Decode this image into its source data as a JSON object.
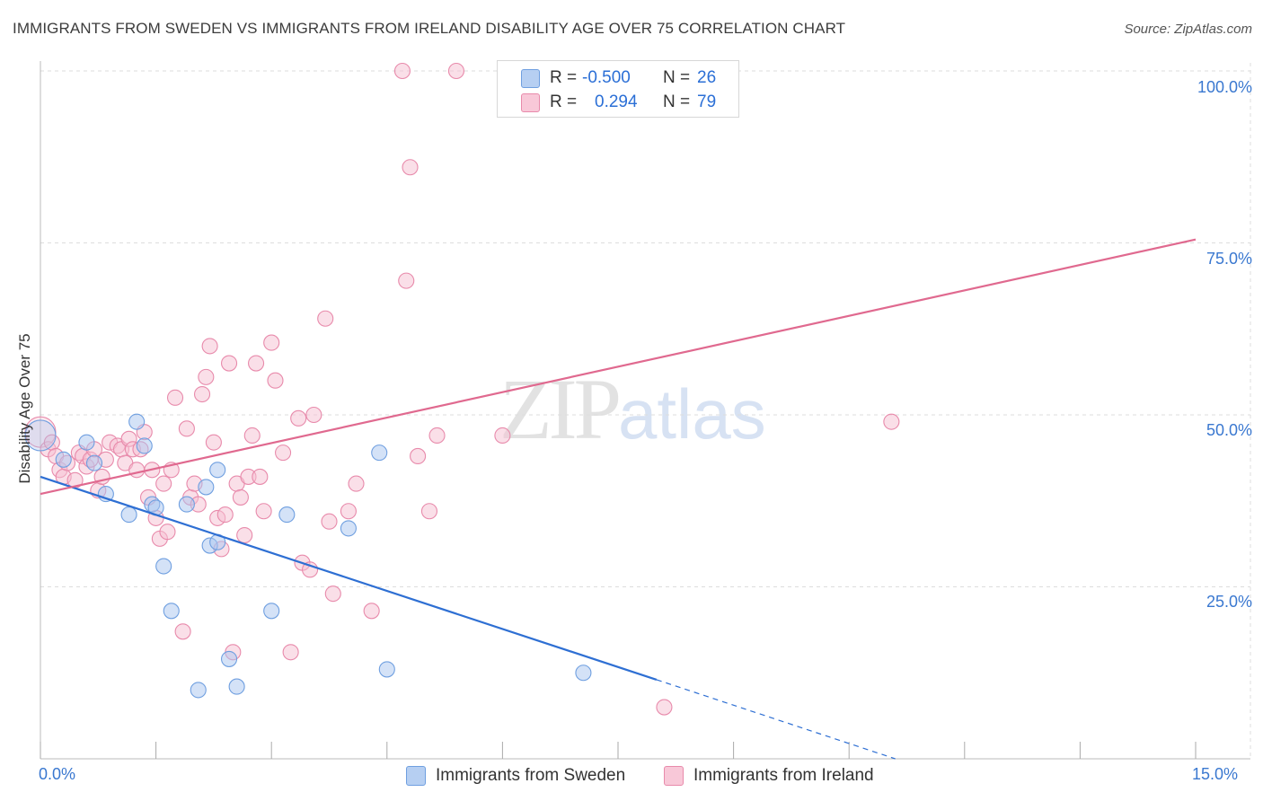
{
  "title": "IMMIGRANTS FROM SWEDEN VS IMMIGRANTS FROM IRELAND DISABILITY AGE OVER 75 CORRELATION CHART",
  "source": "Source: ZipAtlas.com",
  "watermark": {
    "zip": "ZIP",
    "atlas": "atlas"
  },
  "legend": {
    "sweden": {
      "r_label": "R =",
      "r_value": "-0.500",
      "n_label": "N =",
      "n_value": "26"
    },
    "ireland": {
      "r_label": "R =",
      "r_value": "0.294",
      "n_label": "N =",
      "n_value": "79"
    }
  },
  "colors": {
    "sweden_fill": "#a9c6ef",
    "sweden_stroke": "#6f9fe0",
    "sweden_line": "#2e6fd3",
    "ireland_fill": "#f6bfd1",
    "ireland_stroke": "#e88aab",
    "ireland_line": "#e0698f",
    "grid": "#dddddd",
    "axis_text": "#3a78d0"
  },
  "chart_data": {
    "type": "scatter",
    "title": "IMMIGRANTS FROM SWEDEN VS IMMIGRANTS FROM IRELAND DISABILITY AGE OVER 75 CORRELATION CHART",
    "xlabel": "",
    "ylabel": "Disability Age Over 75",
    "xlim": [
      0,
      15
    ],
    "ylim": [
      0,
      100
    ],
    "x_tick_labels": [
      "0.0%",
      "15.0%"
    ],
    "y_tick_labels": [
      "25.0%",
      "50.0%",
      "75.0%",
      "100.0%"
    ],
    "y_ticks": [
      25,
      50,
      75,
      100
    ],
    "grid": true,
    "legend_position": "top-center",
    "series": [
      {
        "name": "Immigrants from Sweden",
        "x": [
          0.0,
          0.3,
          0.6,
          0.7,
          0.85,
          1.15,
          1.25,
          1.35,
          1.45,
          1.5,
          1.6,
          1.7,
          1.9,
          2.05,
          2.15,
          2.2,
          2.3,
          2.3,
          2.45,
          2.55,
          3.0,
          3.2,
          4.0,
          4.4,
          4.5,
          7.05
        ],
        "y": [
          47.0,
          43.5,
          46.0,
          43.0,
          38.5,
          35.5,
          49.0,
          45.5,
          37.0,
          36.5,
          28.0,
          21.5,
          37.0,
          10.0,
          39.5,
          31.0,
          31.5,
          42.0,
          14.5,
          10.5,
          21.5,
          35.5,
          33.5,
          44.5,
          13.0,
          12.5
        ],
        "trend": {
          "x": [
            0.0,
            8.0
          ],
          "y": [
            41.0,
            11.5
          ],
          "dashed_to": {
            "x": 11.1,
            "y": 0
          }
        }
      },
      {
        "name": "Immigrants from Ireland",
        "x": [
          0.0,
          0.1,
          0.15,
          0.2,
          0.25,
          0.3,
          0.35,
          0.45,
          0.5,
          0.55,
          0.6,
          0.65,
          0.7,
          0.75,
          0.8,
          0.85,
          0.9,
          1.0,
          1.05,
          1.1,
          1.15,
          1.2,
          1.25,
          1.3,
          1.35,
          1.4,
          1.45,
          1.5,
          1.55,
          1.6,
          1.65,
          1.7,
          1.75,
          1.85,
          1.9,
          1.95,
          2.0,
          2.05,
          2.1,
          2.15,
          2.2,
          2.25,
          2.3,
          2.35,
          2.4,
          2.45,
          2.5,
          2.55,
          2.6,
          2.65,
          2.7,
          2.75,
          2.8,
          2.85,
          2.9,
          3.0,
          3.05,
          3.15,
          3.25,
          3.35,
          3.4,
          3.5,
          3.55,
          3.7,
          3.75,
          3.8,
          4.0,
          4.1,
          4.3,
          4.7,
          4.75,
          4.8,
          4.9,
          5.05,
          5.15,
          5.4,
          6.0,
          8.1,
          11.05
        ],
        "y": [
          47.5,
          45.0,
          46.0,
          44.0,
          42.0,
          41.0,
          43.0,
          40.5,
          44.5,
          44.0,
          42.5,
          43.5,
          45.0,
          39.0,
          41.0,
          43.5,
          46.0,
          45.5,
          45.0,
          43.0,
          46.5,
          45.0,
          42.0,
          45.0,
          47.5,
          38.0,
          42.0,
          35.0,
          32.0,
          40.0,
          33.0,
          42.0,
          52.5,
          18.5,
          48.0,
          38.0,
          40.0,
          37.0,
          53.0,
          55.5,
          60.0,
          46.0,
          35.0,
          30.5,
          35.5,
          57.5,
          15.5,
          40.0,
          38.0,
          32.5,
          41.0,
          47.0,
          57.5,
          41.0,
          36.0,
          60.5,
          55.0,
          44.5,
          15.5,
          49.5,
          28.5,
          27.5,
          50.0,
          64.0,
          34.5,
          24.0,
          36.0,
          40.0,
          21.5,
          100.0,
          69.5,
          86.0,
          44.0,
          36.0,
          47.0,
          100.0,
          47.0,
          7.5,
          49.0
        ],
        "trend": {
          "x": [
            0.0,
            15.0
          ],
          "y": [
            38.5,
            75.5
          ]
        }
      }
    ]
  },
  "bottom_legend": {
    "sweden": "Immigrants from Sweden",
    "ireland": "Immigrants from Ireland"
  },
  "axis": {
    "x_left": "0.0%",
    "x_right": "15.0%",
    "y_title": "Disability Age Over 75"
  }
}
